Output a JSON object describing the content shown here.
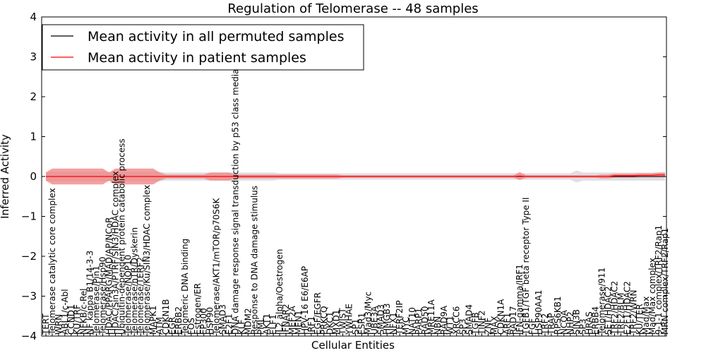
{
  "chart_data": {
    "type": "line",
    "title": "Regulation of Telomerase -- 48 samples",
    "xlabel": "Cellular Entities",
    "ylabel": "Inferred Activity",
    "ylim": [
      -4,
      4
    ],
    "yticks": [
      4,
      3,
      2,
      1,
      0,
      -1,
      -2,
      -3,
      -4
    ],
    "ytick_labels": [
      "4",
      "3",
      "2",
      "1",
      "0",
      "−1",
      "−2",
      "−3",
      "−4"
    ],
    "legend": {
      "placement": "top-left",
      "entries": [
        "Mean activity in all permuted samples",
        "Mean activity in patient samples"
      ]
    },
    "colors": {
      "permuted": "#000000",
      "patient": "#ff0000",
      "patient_band": "#f08080",
      "permuted_band": "#c8c8d0",
      "zero_line": "#000000"
    },
    "categories": [
      "TERT",
      "Telomerase catalytic core complex",
      "WRN",
      "ABL1/c-Abl",
      "CCND1",
      "KU/TRF",
      "NFKB/c-Rel",
      "NF kappa B1/14-3-3",
      "Telomerase/Pin1",
      "Telomerase/Hsp90",
      "HDAC/PPARG/MAD/AP/NCoR",
      "HDAC/Sin3A/PTRF/SIN3/HDAC complex",
      "Ubiquitin-dependent protein catabolic process",
      "Telomerase/NOP10",
      "Telomerase/hTR/Dyskerin",
      "Telomerase/TERF2",
      "Telomerase/Ku/SIN3/HDAC complex",
      "MAPK1",
      "ATM",
      "CDKN1B",
      "EGR",
      "ERBB2",
      "Telomeric DNA binding",
      "FOS",
      "Estrogen/ER",
      "EP300",
      "HSP90",
      "Telomerase/AKT1/mTOR/p70S6K",
      "SMAD3",
      "E2F1",
      "DNA damage response signal transduction by p53 class mediator",
      "KLF",
      "MDM2",
      "Response to DNA damage stimulus",
      "PML",
      "AKT1",
      "ELF1",
      "IL2 alpha/Oestrogen",
      "IFNAR2",
      "MEF2A",
      "MEN1",
      "HPV-16 E6/E6AP",
      "IRF1",
      "EGF/EGFR",
      "PRKCQ",
      "DKC1",
      "MXD1",
      "TWIST",
      "YWHAE",
      "SP1",
      "ESR1",
      "Mad3/Myc",
      "UBE3A",
      "SMAD3",
      "HMGB3",
      "NFX1",
      "TERF2IP",
      "MYC",
      "NAT10",
      "PARP1",
      "RAD50",
      "MRE11A",
      "NBN",
      "RAD9A",
      "WT1",
      "XRCC6",
      "SP3",
      "SMAD4",
      "TGFB",
      "TINF2",
      "ZNF",
      "MAX",
      "CDKN1A",
      "ARF1",
      "RAD17",
      "IFN-gamma/IRF1",
      "TGFB1/TGF beta receptor Type II",
      "FGF",
      "HSP90AA1",
      "TRF2",
      "TRAP",
      "RPS6KB1",
      "NCOA",
      "NHP2",
      "SIN3B",
      "SP3",
      "HRAS",
      "ERBB4",
      "Telomerase/911",
      "SET/HDAC2",
      "TRF2/HDAC2",
      "TRF2/BLM",
      "E2F1/HDAC2",
      "TRF2/WRN",
      "KU/TER",
      "Mad/Max",
      "Mad/Max complex",
      "9-1-1 complex/TRF2/Rap1",
      "MRN complex/TRF2/Rap1"
    ],
    "series": [
      {
        "name": "Mean activity in all permuted samples",
        "values": [
          0,
          0,
          0,
          0,
          0,
          0,
          0,
          0,
          0,
          0,
          0,
          0,
          0,
          0,
          0,
          0,
          0,
          0,
          0,
          0,
          0,
          0,
          0,
          0,
          0,
          0,
          0,
          0,
          0,
          0,
          0,
          0,
          0,
          0,
          0,
          0,
          0,
          0,
          0,
          0,
          0,
          0,
          0,
          0,
          0,
          0,
          0,
          0,
          0,
          0,
          0,
          0,
          0,
          0,
          0,
          0,
          0,
          0,
          0,
          0,
          0,
          0,
          0,
          0,
          0,
          0,
          0,
          0,
          0,
          0,
          0,
          0,
          0,
          0,
          0,
          0,
          0,
          0,
          0,
          0,
          0,
          0,
          0,
          0,
          0,
          0,
          0,
          0,
          0,
          0,
          0,
          0,
          0,
          0,
          0,
          0,
          0,
          0,
          0
        ]
      },
      {
        "name": "Mean activity in patient samples",
        "values": [
          0,
          0,
          0,
          0,
          0,
          0,
          0,
          0,
          0,
          0,
          0,
          0,
          0,
          0,
          0,
          0,
          0,
          0,
          0,
          0,
          0,
          0,
          0,
          0,
          0,
          0,
          0,
          0,
          0,
          0,
          0,
          0,
          0,
          0,
          0,
          0,
          0,
          0,
          0,
          0,
          0,
          0,
          0,
          0,
          0,
          0,
          0,
          0,
          0,
          0,
          0,
          0,
          0,
          0,
          0,
          0,
          0,
          0,
          0,
          0,
          0,
          0,
          0,
          0,
          0,
          0,
          0,
          0,
          0,
          0,
          0,
          0,
          0,
          0,
          0,
          0.01,
          0,
          0,
          0,
          0,
          0,
          0,
          0,
          0,
          0,
          0,
          0,
          0,
          0,
          0,
          0.02,
          0.02,
          0.02,
          0.02,
          0.03,
          0.03,
          0.03,
          0.04,
          0.04
        ]
      }
    ],
    "patient_band": [
      0.1,
      0.2,
      0.2,
      0.2,
      0.2,
      0.2,
      0.2,
      0.2,
      0.2,
      0.2,
      0.1,
      0.2,
      0.2,
      0.2,
      0.2,
      0.2,
      0.2,
      0.2,
      0.1,
      0.05,
      0.05,
      0.05,
      0.05,
      0.05,
      0.05,
      0.05,
      0.1,
      0.1,
      0.1,
      0.1,
      0.05,
      0.05,
      0.05,
      0.05,
      0.05,
      0.05,
      0.05,
      0.05,
      0.05,
      0.05,
      0.05,
      0.05,
      0.05,
      0.05,
      0.05,
      0.05,
      0.05,
      0.03,
      0.03,
      0.03,
      0.03,
      0.03,
      0.03,
      0.03,
      0.03,
      0.03,
      0.03,
      0.03,
      0.03,
      0.03,
      0.03,
      0.03,
      0.03,
      0.03,
      0.03,
      0.03,
      0.03,
      0.03,
      0.03,
      0.03,
      0.03,
      0.03,
      0.03,
      0.03,
      0.03,
      0.1,
      0.03,
      0.03,
      0.03,
      0.03,
      0.03,
      0.03,
      0.03,
      0.03,
      0.03,
      0.03,
      0.03,
      0.03,
      0.05,
      0.05,
      0.05,
      0.05,
      0.05,
      0.05,
      0.05,
      0.05,
      0.05,
      0.06,
      0.06
    ],
    "permuted_band": [
      0.12,
      0.12,
      0.12,
      0.12,
      0.12,
      0.12,
      0.12,
      0.12,
      0.12,
      0.12,
      0.12,
      0.12,
      0.12,
      0.12,
      0.12,
      0.12,
      0.12,
      0.12,
      0.12,
      0.1,
      0.1,
      0.1,
      0.1,
      0.1,
      0.1,
      0.1,
      0.1,
      0.1,
      0.1,
      0.1,
      0.1,
      0.1,
      0.1,
      0.1,
      0.1,
      0.1,
      0.1,
      0.08,
      0.08,
      0.08,
      0.08,
      0.08,
      0.08,
      0.08,
      0.08,
      0.08,
      0.08,
      0.08,
      0.08,
      0.08,
      0.08,
      0.08,
      0.08,
      0.08,
      0.08,
      0.08,
      0.08,
      0.08,
      0.08,
      0.08,
      0.08,
      0.08,
      0.08,
      0.08,
      0.08,
      0.08,
      0.08,
      0.08,
      0.08,
      0.08,
      0.08,
      0.08,
      0.08,
      0.08,
      0.08,
      0.08,
      0.08,
      0.08,
      0.08,
      0.08,
      0.08,
      0.08,
      0.08,
      0.08,
      0.15,
      0.1,
      0.1,
      0.1,
      0.1,
      0.1,
      0.1,
      0.1,
      0.1,
      0.1,
      0.1,
      0.1,
      0.1,
      0.1,
      0.1
    ]
  }
}
